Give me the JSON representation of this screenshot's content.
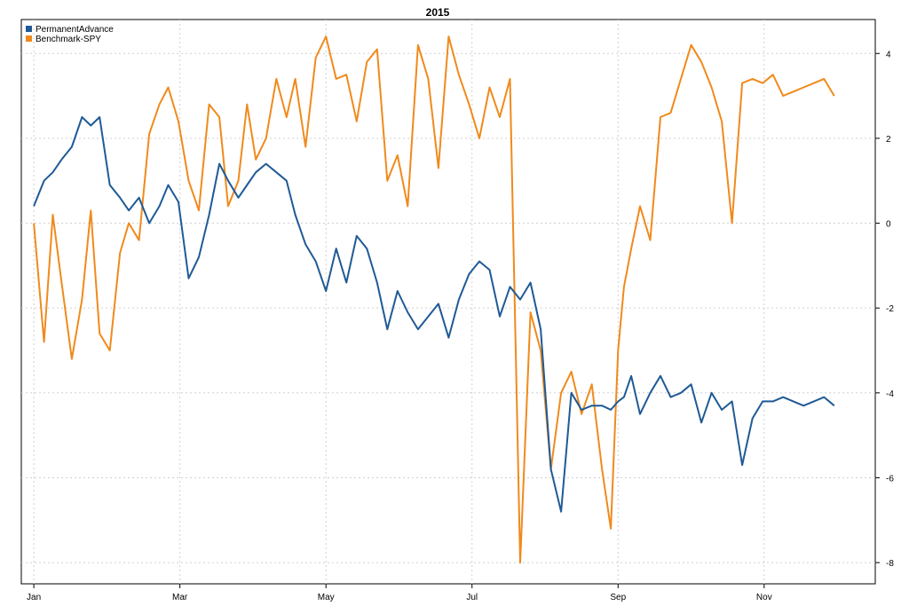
{
  "chart_data": {
    "type": "line",
    "title": "2015",
    "xlabel": "",
    "ylabel": "",
    "x_tick_labels": [
      "Jan",
      "Mar",
      "May",
      "Jul",
      "Sep",
      "Nov"
    ],
    "x_tick_months": [
      0,
      2,
      4,
      6,
      8,
      10
    ],
    "ylim": [
      -8.5,
      4.8
    ],
    "y_ticks": [
      4,
      2,
      0,
      -2,
      -4,
      -6,
      -8
    ],
    "y_axis_side": "right",
    "grid": true,
    "legend": {
      "position": "top-left",
      "entries": [
        {
          "name": "PermanentAdvance",
          "color": "#1f5a96"
        },
        {
          "name": "Benchmark-SPY",
          "color": "#f08a1c"
        }
      ]
    },
    "x": [
      0.0,
      0.14,
      0.26,
      0.38,
      0.52,
      0.66,
      0.78,
      0.9,
      1.04,
      1.18,
      1.3,
      1.44,
      1.58,
      1.72,
      1.84,
      1.98,
      2.12,
      2.26,
      2.4,
      2.54,
      2.66,
      2.8,
      2.92,
      3.04,
      3.18,
      3.32,
      3.46,
      3.58,
      3.72,
      3.86,
      4.0,
      4.14,
      4.28,
      4.42,
      4.56,
      4.7,
      4.84,
      4.98,
      5.12,
      5.26,
      5.4,
      5.54,
      5.68,
      5.82,
      5.96,
      6.1,
      6.24,
      6.38,
      6.52,
      6.66,
      6.8,
      6.94,
      7.08,
      7.22,
      7.36,
      7.5,
      7.64,
      7.78,
      7.9,
      8.0,
      8.08,
      8.18,
      8.3,
      8.44,
      8.58,
      8.72,
      8.86,
      9.0,
      9.14,
      9.28,
      9.42,
      9.56,
      9.7,
      9.84,
      9.98,
      10.12,
      10.26,
      10.4,
      10.54,
      10.68,
      10.82,
      10.96
    ],
    "series": [
      {
        "name": "PermanentAdvance",
        "color": "#1f5a96",
        "values": [
          0.4,
          1.0,
          1.2,
          1.5,
          1.8,
          2.5,
          2.3,
          2.5,
          0.9,
          0.6,
          0.3,
          0.6,
          0.0,
          0.4,
          0.9,
          0.5,
          -1.3,
          -0.8,
          0.2,
          1.4,
          1.0,
          0.6,
          0.9,
          1.2,
          1.4,
          1.2,
          1.0,
          0.2,
          -0.5,
          -0.9,
          -1.6,
          -0.6,
          -1.4,
          -0.3,
          -0.6,
          -1.4,
          -2.5,
          -1.6,
          -2.1,
          -2.5,
          -2.2,
          -1.9,
          -2.7,
          -1.8,
          -1.2,
          -0.9,
          -1.1,
          -2.2,
          -1.5,
          -1.8,
          -1.4,
          -2.5,
          -5.8,
          -6.8,
          -4.0,
          -4.4,
          -4.3,
          -4.3,
          -4.4,
          -4.2,
          -4.1,
          -3.6,
          -4.5,
          -4.0,
          -3.6,
          -4.1,
          -4.0,
          -3.8,
          -4.7,
          -4.0,
          -4.4,
          -4.2,
          -5.7,
          -4.6,
          -4.2,
          -4.2,
          -4.1,
          -4.2,
          -4.3,
          -4.2,
          -4.1,
          -4.3
        ]
      },
      {
        "name": "Benchmark-SPY",
        "color": "#f08a1c",
        "values": [
          0.0,
          -2.8,
          0.2,
          -1.4,
          -3.2,
          -1.8,
          0.3,
          -2.6,
          -3.0,
          -0.7,
          0.0,
          -0.4,
          2.1,
          2.8,
          3.2,
          2.4,
          1.0,
          0.3,
          2.8,
          2.5,
          0.4,
          1.0,
          2.8,
          1.5,
          2.0,
          3.4,
          2.5,
          3.4,
          1.8,
          3.9,
          4.4,
          3.4,
          3.5,
          2.4,
          3.8,
          4.1,
          1.0,
          1.6,
          0.4,
          4.2,
          3.4,
          1.3,
          4.4,
          3.5,
          2.8,
          2.0,
          3.2,
          2.5,
          3.4,
          -8.0,
          -2.1,
          -3.0,
          -5.8,
          -4.0,
          -3.5,
          -4.5,
          -3.8,
          -5.8,
          -7.2,
          -3.0,
          -1.5,
          -0.6,
          0.4,
          -0.4,
          2.5,
          2.6,
          3.4,
          4.2,
          3.8,
          3.2,
          2.4,
          0.0,
          3.3,
          3.4,
          3.3,
          3.5,
          3.0,
          3.1,
          3.2,
          3.3,
          3.4,
          3.0
        ]
      }
    ]
  }
}
